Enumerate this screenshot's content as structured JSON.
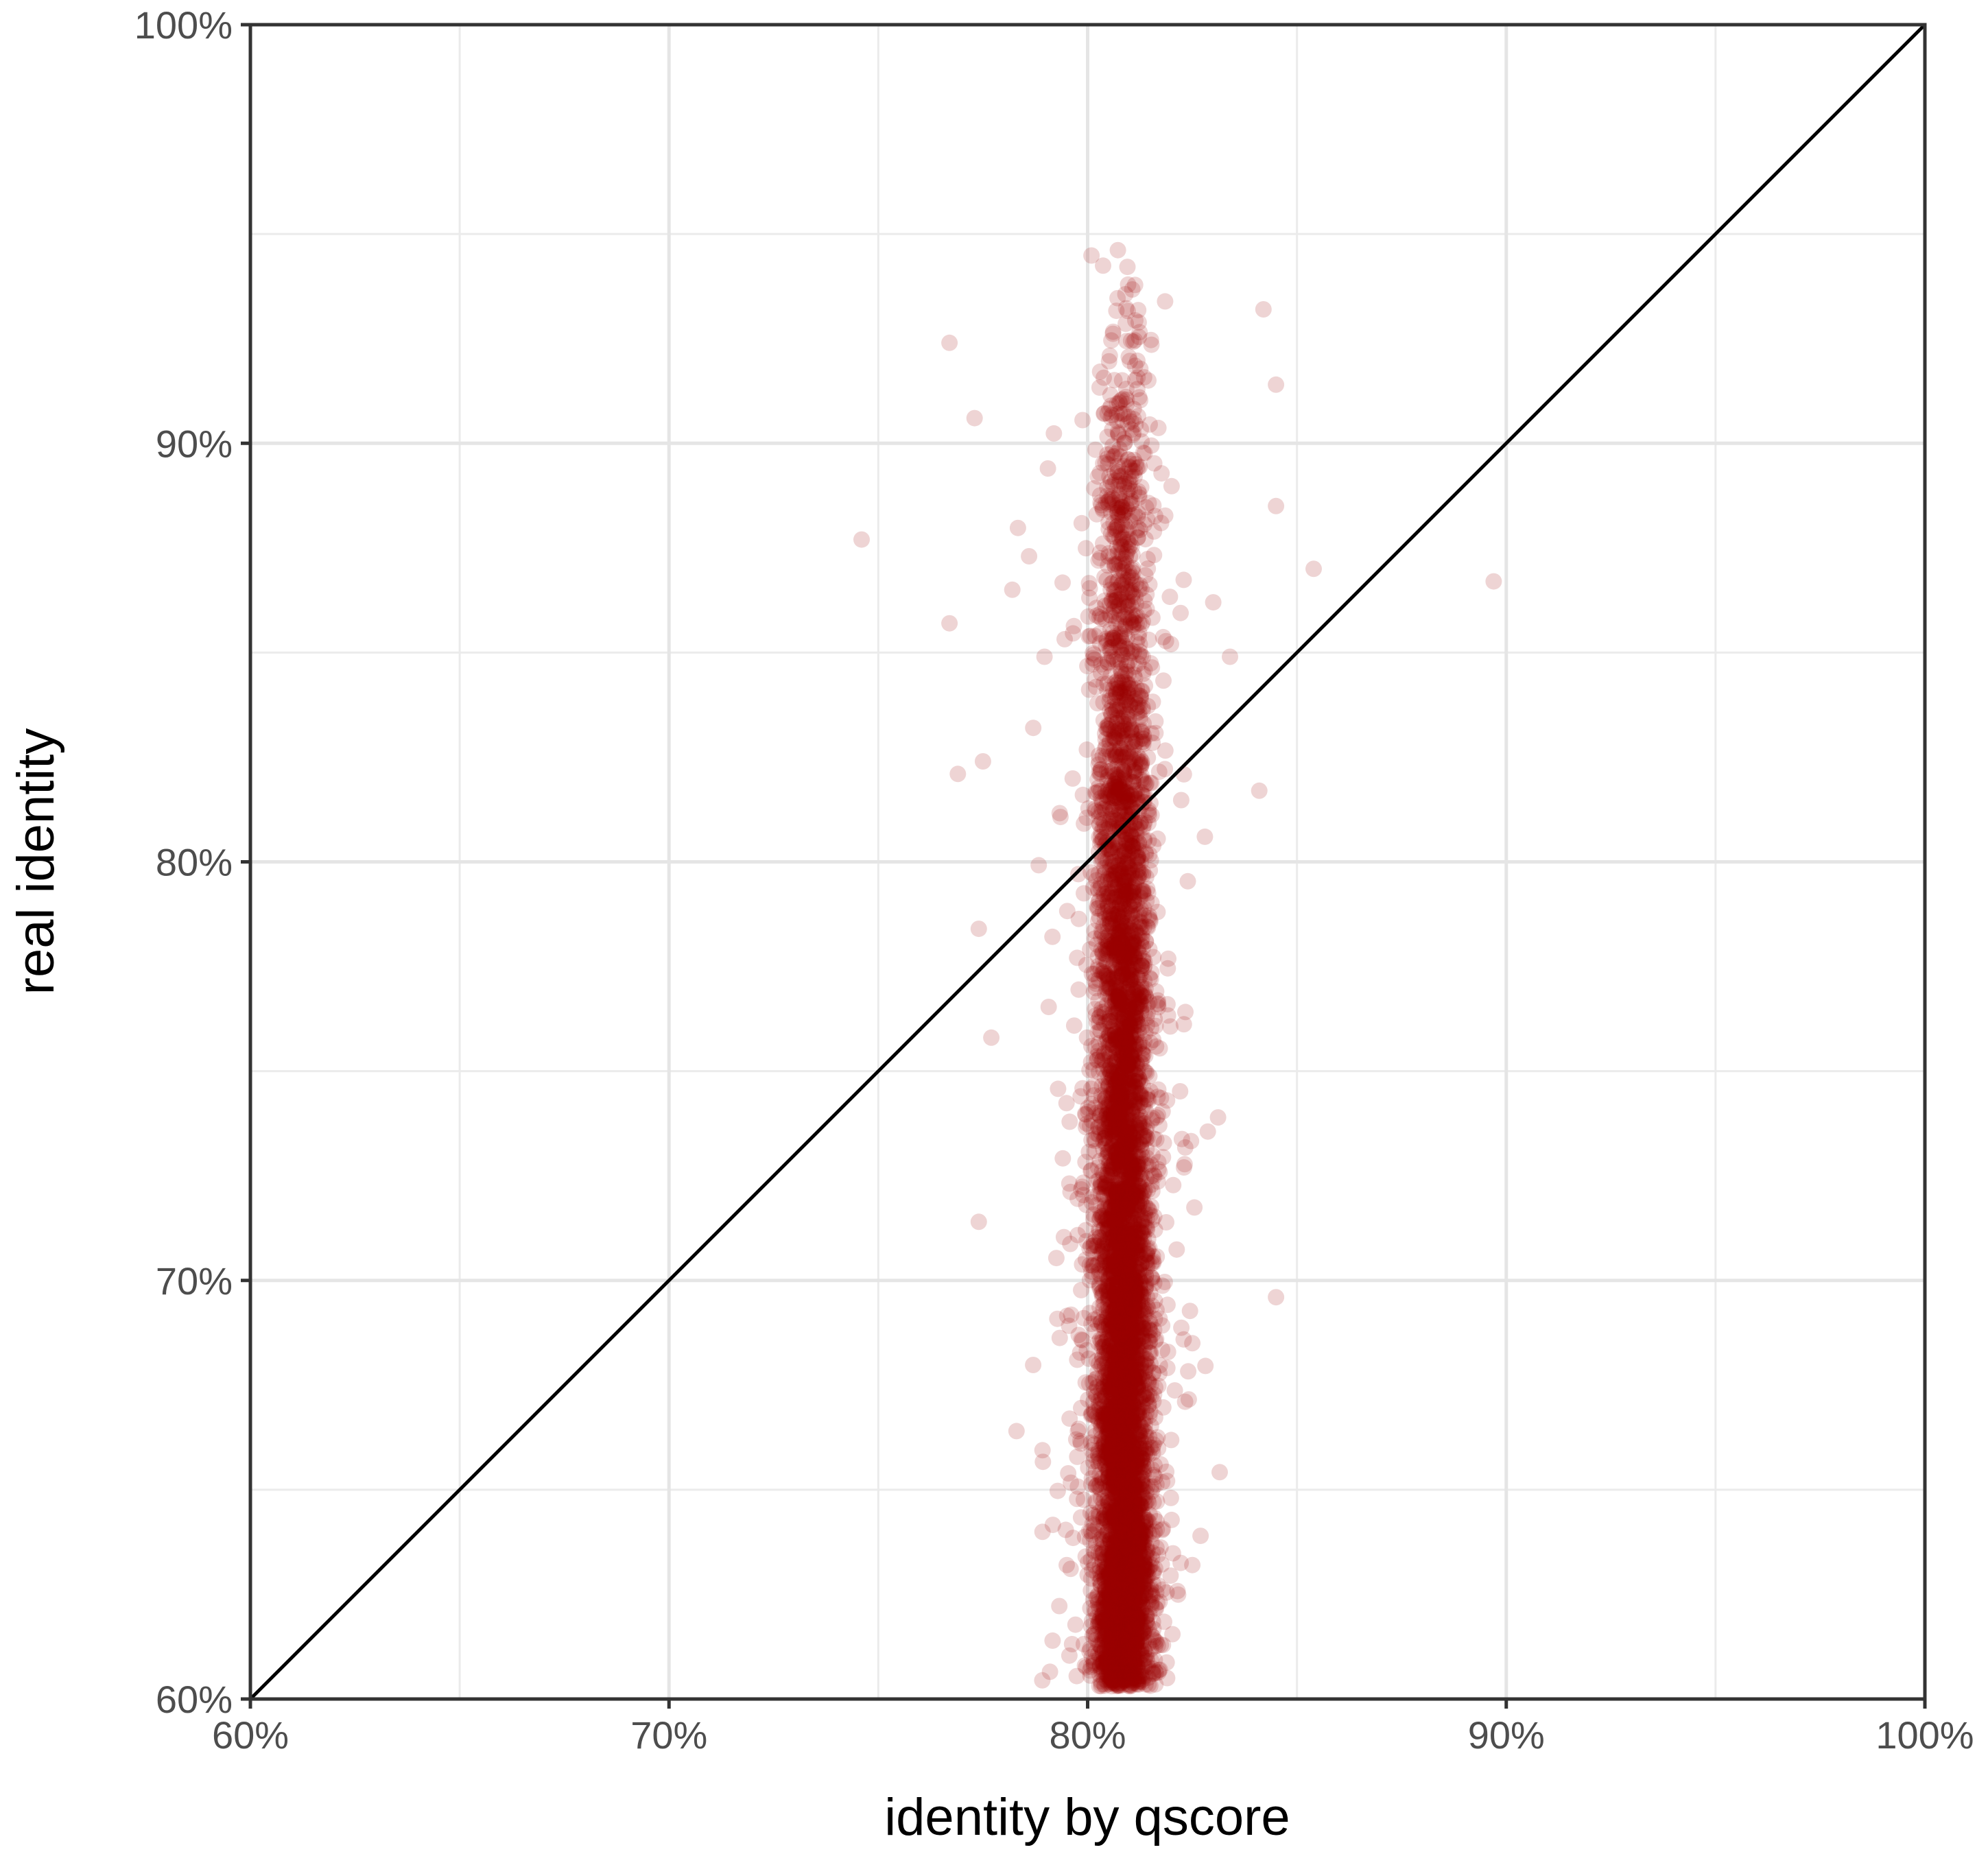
{
  "chart_data": {
    "type": "scatter",
    "title": "",
    "xlabel": "identity by qscore",
    "ylabel": "real identity",
    "xlim": [
      60,
      100
    ],
    "ylim": [
      60,
      100
    ],
    "x_ticks": [
      60,
      70,
      80,
      90,
      100
    ],
    "y_ticks": [
      60,
      70,
      80,
      90,
      100
    ],
    "x_tick_labels": [
      "60%",
      "70%",
      "80%",
      "90%",
      "100%"
    ],
    "y_tick_labels": [
      "60%",
      "70%",
      "80%",
      "90%",
      "100%"
    ],
    "minor_grid": [
      65,
      75,
      85,
      95
    ],
    "grid": true,
    "reference_line": {
      "from": [
        60,
        60
      ],
      "to": [
        100,
        100
      ]
    },
    "point_color": "#990000",
    "point_opacity": 0.17,
    "main_cluster": {
      "x_center": 80.85,
      "x_spread": 0.32,
      "y_range": [
        60.3,
        95.0
      ],
      "count": 6500
    },
    "sample_points": [
      {
        "x": 74.6,
        "y": 87.7
      },
      {
        "x": 76.7,
        "y": 92.4
      },
      {
        "x": 77.3,
        "y": 90.6
      },
      {
        "x": 76.7,
        "y": 85.7
      },
      {
        "x": 76.9,
        "y": 82.1
      },
      {
        "x": 77.5,
        "y": 82.4
      },
      {
        "x": 77.4,
        "y": 78.4
      },
      {
        "x": 77.7,
        "y": 75.8
      },
      {
        "x": 77.4,
        "y": 71.4
      },
      {
        "x": 78.3,
        "y": 66.4
      },
      {
        "x": 79.5,
        "y": 63.2
      },
      {
        "x": 84.2,
        "y": 93.2
      },
      {
        "x": 84.5,
        "y": 91.4
      },
      {
        "x": 84.5,
        "y": 88.5
      },
      {
        "x": 85.4,
        "y": 87.0
      },
      {
        "x": 89.7,
        "y": 86.7
      },
      {
        "x": 84.1,
        "y": 81.7
      },
      {
        "x": 84.5,
        "y": 69.6
      },
      {
        "x": 82.3,
        "y": 72.7
      },
      {
        "x": 82.5,
        "y": 68.5
      },
      {
        "x": 82.5,
        "y": 63.2
      },
      {
        "x": 81.9,
        "y": 60.5
      },
      {
        "x": 78.6,
        "y": 87.3
      },
      {
        "x": 78.2,
        "y": 86.5
      },
      {
        "x": 83.0,
        "y": 86.2
      },
      {
        "x": 83.4,
        "y": 84.9
      },
      {
        "x": 82.8,
        "y": 80.6
      },
      {
        "x": 78.7,
        "y": 83.2
      }
    ]
  }
}
